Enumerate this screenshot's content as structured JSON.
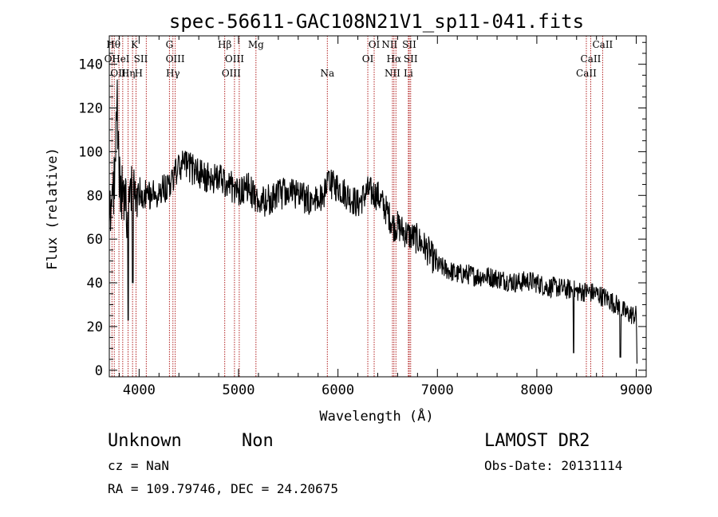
{
  "chart_data": {
    "type": "line",
    "title": "spec-56611-GAC108N21V1_sp11-041.fits",
    "xlabel": "Wavelength (Å)",
    "ylabel": "Flux (relative)",
    "xlim": [
      3700,
      9100
    ],
    "ylim": [
      -3,
      153
    ],
    "xticks": [
      4000,
      5000,
      6000,
      7000,
      8000,
      9000
    ],
    "xtick_labels": [
      "4000",
      "5000",
      "6000",
      "7000",
      "8000",
      "9000"
    ],
    "yticks": [
      0,
      20,
      40,
      60,
      80,
      100,
      120,
      140
    ],
    "ytick_labels": [
      "0",
      "20",
      "40",
      "60",
      "80",
      "100",
      "120",
      "140"
    ],
    "grid": false,
    "line_color": "#000000",
    "marker_color": "#b22222",
    "spectrum_envelope": {
      "x": [
        3700,
        3740,
        3760,
        3780,
        3800,
        3830,
        3860,
        3880,
        3900,
        3930,
        3960,
        4000,
        4100,
        4200,
        4300,
        4400,
        4450,
        4500,
        4600,
        4700,
        4800,
        4900,
        5000,
        5100,
        5150,
        5200,
        5300,
        5400,
        5500,
        5600,
        5700,
        5800,
        5900,
        6000,
        6100,
        6200,
        6300,
        6400,
        6500,
        6560,
        6600,
        6700,
        6800,
        6900,
        7000,
        7100,
        7200,
        7300,
        7400,
        7500,
        7600,
        7700,
        7800,
        7900,
        8000,
        8100,
        8200,
        8300,
        8350,
        8400,
        8500,
        8600,
        8700,
        8800,
        8850,
        8900,
        9000,
        9010
      ],
      "y": [
        72,
        80,
        95,
        120,
        85,
        80,
        75,
        70,
        78,
        82,
        80,
        82,
        80,
        82,
        85,
        92,
        95,
        93,
        90,
        88,
        88,
        85,
        82,
        84,
        80,
        76,
        78,
        80,
        82,
        80,
        78,
        77,
        85,
        84,
        80,
        76,
        82,
        80,
        72,
        66,
        66,
        62,
        60,
        55,
        48,
        46,
        44,
        44,
        43,
        43,
        42,
        41,
        40,
        41,
        40,
        38,
        38,
        37,
        37,
        36,
        36,
        35,
        33,
        30,
        28,
        26,
        25,
        5
      ]
    },
    "noise_seed": 56611,
    "marked_dips": [
      {
        "x": 3890,
        "y": 23
      },
      {
        "x": 3935,
        "y": 40
      },
      {
        "x": 8370,
        "y": 8
      },
      {
        "x": 8840,
        "y": 6
      },
      {
        "x": 9010,
        "y": 3
      }
    ],
    "spectral_lines": [
      {
        "label": "Hθ",
        "x": 3797,
        "row": 0,
        "align": "end"
      },
      {
        "label": "OI",
        "x": 3750,
        "row": 1,
        "align": "end"
      },
      {
        "label": "OII",
        "x": 3727,
        "row": 2,
        "align": "start"
      },
      {
        "label": "HeI",
        "x": 3889,
        "row": 1,
        "align": "end"
      },
      {
        "label": "Hη",
        "x": 3835,
        "row": 2,
        "align": "start"
      },
      {
        "label": "K",
        "x": 3934,
        "row": 0,
        "align": "start"
      },
      {
        "label": "H",
        "x": 3969,
        "row": 2,
        "align": "start"
      },
      {
        "label": "SII",
        "x": 4072,
        "row": 1,
        "align": "end"
      },
      {
        "label": "G",
        "x": 4305,
        "row": 0,
        "align": "middle"
      },
      {
        "label": "OIII",
        "x": 4363,
        "row": 1,
        "align": "middle"
      },
      {
        "label": "Hγ",
        "x": 4340,
        "row": 2,
        "align": "middle"
      },
      {
        "label": "Hβ",
        "x": 4861,
        "row": 0,
        "align": "middle"
      },
      {
        "label": "OIII",
        "x": 4959,
        "row": 1,
        "align": "middle"
      },
      {
        "label": "OIII",
        "x": 5007,
        "row": 2,
        "align": "end"
      },
      {
        "label": "Mg",
        "x": 5175,
        "row": 0,
        "align": "middle"
      },
      {
        "label": "Na",
        "x": 5893,
        "row": 2,
        "align": "middle"
      },
      {
        "label": "OI",
        "x": 6364,
        "row": 0,
        "align": "middle"
      },
      {
        "label": "OI",
        "x": 6300,
        "row": 1,
        "align": "middle"
      },
      {
        "label": "NII",
        "x": 6583,
        "row": 0,
        "align": "end"
      },
      {
        "label": "Hα",
        "x": 6563,
        "row": 1,
        "align": "middle"
      },
      {
        "label": "NII",
        "x": 6548,
        "row": 2,
        "align": "middle"
      },
      {
        "label": "SII",
        "x": 6717,
        "row": 0,
        "align": "middle"
      },
      {
        "label": "SII",
        "x": 6731,
        "row": 1,
        "align": "middle"
      },
      {
        "label": "Li",
        "x": 6708,
        "row": 2,
        "align": "middle"
      },
      {
        "label": "CaII",
        "x": 8662,
        "row": 0,
        "align": "middle"
      },
      {
        "label": "CaII",
        "x": 8542,
        "row": 1,
        "align": "middle"
      },
      {
        "label": "CaII",
        "x": 8498,
        "row": 2,
        "align": "middle"
      }
    ]
  },
  "info": {
    "object_class": "Unknown",
    "subclass": "Non",
    "survey": "LAMOST DR2",
    "redshift": "cz = NaN",
    "obs_date": "Obs-Date: 20131114",
    "coords": "RA = 109.79746, DEC =  24.20675"
  }
}
